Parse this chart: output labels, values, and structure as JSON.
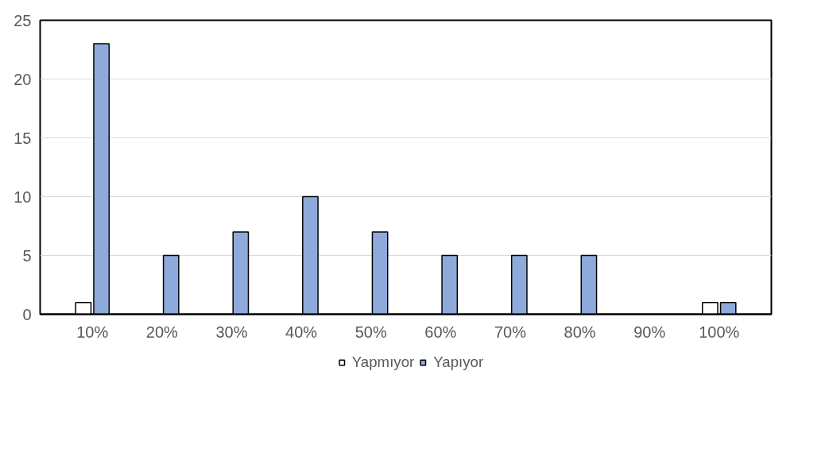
{
  "chart_data": {
    "type": "bar",
    "categories": [
      "10%",
      "20%",
      "30%",
      "40%",
      "50%",
      "60%",
      "70%",
      "80%",
      "90%",
      "100%"
    ],
    "series": [
      {
        "name": "Yapmıyor",
        "color": "#ffffff",
        "values": [
          1,
          null,
          null,
          null,
          null,
          null,
          null,
          null,
          null,
          1
        ]
      },
      {
        "name": "Yapıyor",
        "color": "#8eaadb",
        "values": [
          23,
          5,
          7,
          10,
          7,
          5,
          5,
          5,
          null,
          1
        ]
      }
    ],
    "ylim": [
      0,
      25
    ],
    "yticks": [
      0,
      5,
      10,
      15,
      20,
      25
    ],
    "grid": "y",
    "legend": "bottom"
  }
}
